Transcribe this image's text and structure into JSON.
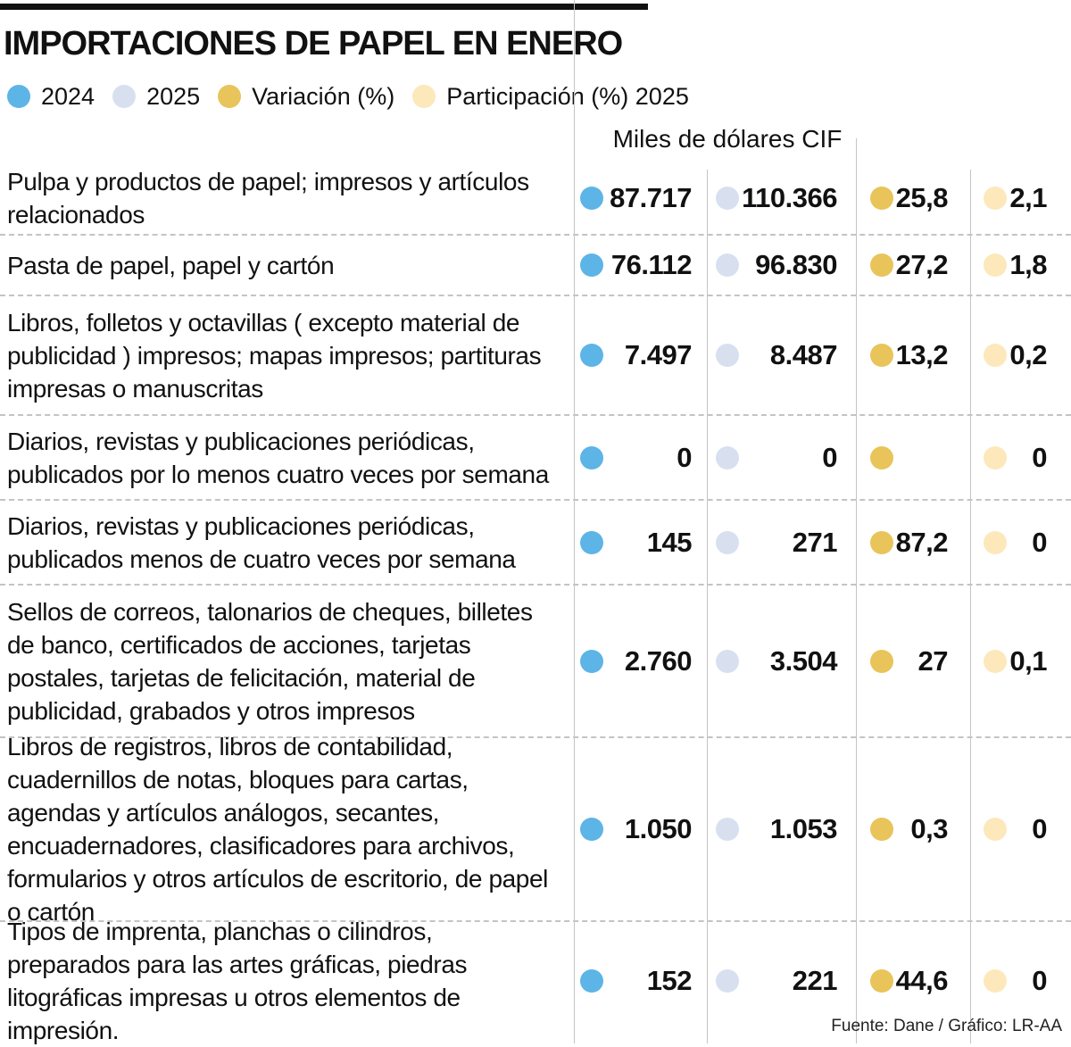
{
  "title": "IMPORTACIONES DE PAPEL EN ENERO",
  "legend": [
    {
      "label": "2024",
      "color": "#5db4e6"
    },
    {
      "label": "2025",
      "color": "#d8e0f0"
    },
    {
      "label": "Variación (%)",
      "color": "#e8c45a"
    },
    {
      "label": "Participación (%) 2025",
      "color": "#fde8bb"
    }
  ],
  "header_label": "Miles de dólares CIF",
  "source": "Fuente: Dane / Gráfico: LR-AA",
  "chart_data": {
    "type": "table",
    "title": "IMPORTACIONES DE PAPEL EN ENERO",
    "unit": "Miles de dólares CIF",
    "columns": [
      "2024",
      "2025",
      "Variación (%)",
      "Participación (%) 2025"
    ],
    "rows": [
      {
        "category": "Pulpa y productos de papel; impresos y artículos relacionados",
        "values": [
          "87.717",
          "110.366",
          "25,8",
          "2,1"
        ]
      },
      {
        "category": "Pasta de papel, papel y cartón",
        "values": [
          "76.112",
          "96.830",
          "27,2",
          "1,8"
        ]
      },
      {
        "category": "Libros, folletos y octavillas ( excepto material de publicidad ) impresos; mapas impresos; partituras impresas o manuscritas",
        "values": [
          "7.497",
          "8.487",
          "13,2",
          "0,2"
        ]
      },
      {
        "category": "Diarios, revistas y publicaciones periódicas, publicados por lo menos cuatro veces por semana",
        "values": [
          "0",
          "0",
          "",
          "0"
        ]
      },
      {
        "category": "Diarios, revistas y publicaciones periódicas, publicados menos de cuatro veces por semana",
        "values": [
          "145",
          "271",
          "87,2",
          "0"
        ]
      },
      {
        "category": "Sellos de correos, talonarios de cheques, billetes de banco, certificados de acciones, tarjetas postales, tarjetas de felicitación, material de publicidad, grabados y otros impresos",
        "values": [
          "2.760",
          "3.504",
          "27",
          "0,1"
        ]
      },
      {
        "category": "Libros de registros, libros de contabilidad, cuadernillos de notas, bloques para cartas, agendas y artículos análogos, secantes, encuadernadores, clasificadores para archivos, formularios y otros artículos de escritorio, de papel o cartón",
        "values": [
          "1.050",
          "1.053",
          "0,3",
          "0"
        ]
      },
      {
        "category": "Tipos de imprenta, planchas o cilindros, preparados para las artes gráficas, piedras litográficas impresas u otros elementos de impresión.",
        "values": [
          "152",
          "221",
          "44,6",
          "0"
        ]
      }
    ]
  }
}
